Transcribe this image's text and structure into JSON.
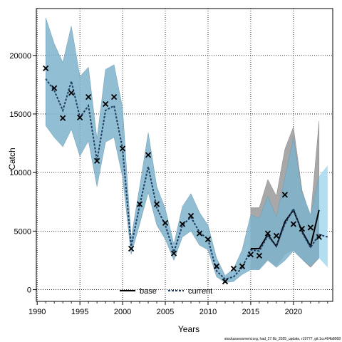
{
  "chart_data": {
    "type": "line",
    "title": "",
    "xlabel": "Years",
    "ylabel": "Catch",
    "xlim": [
      1989.9,
      2024.6
    ],
    "ylim": [
      -1000,
      24000
    ],
    "x_ticks": [
      "1990",
      "1995",
      "2000",
      "2005",
      "2010",
      "2015",
      "2020"
    ],
    "y_ticks": [
      "0",
      "5000",
      "10000",
      "15000",
      "20000"
    ],
    "grid": true,
    "legend_position": "bottom",
    "legend": [
      "base",
      "current"
    ],
    "years": [
      1991,
      1992,
      1993,
      1994,
      1995,
      1996,
      1997,
      1998,
      1999,
      2000,
      2001,
      2002,
      2003,
      2004,
      2005,
      2006,
      2007,
      2008,
      2009,
      2010,
      2011,
      2012,
      2013,
      2014,
      2015,
      2016,
      2017,
      2018,
      2019,
      2020,
      2021,
      2022,
      2023,
      2024
    ],
    "observed": {
      "name": "observed",
      "x": [
        1991,
        1992,
        1993,
        1994,
        1995,
        1996,
        1997,
        1998,
        1999,
        2000,
        2001,
        2002,
        2003,
        2004,
        2005,
        2006,
        2007,
        2008,
        2009,
        2010,
        2011,
        2012,
        2013,
        2014,
        2015,
        2016,
        2017,
        2018,
        2019,
        2020,
        2021,
        2022,
        2023
      ],
      "y": [
        18900,
        17200,
        14650,
        16800,
        14700,
        16450,
        11000,
        15850,
        16450,
        12050,
        3500,
        7300,
        11500,
        7300,
        5700,
        3100,
        5600,
        6300,
        4800,
        4300,
        2000,
        700,
        1800,
        2000,
        3000,
        2900,
        4800,
        4600,
        8100,
        5600,
        5200,
        5300,
        4500
      ]
    },
    "series": [
      {
        "name": "base",
        "color": "#000000",
        "style": "solid",
        "x": [
          2015,
          2016,
          2017,
          2018,
          2019,
          2020,
          2021,
          2022,
          2023
        ],
        "values": [
          3500,
          3500,
          4700,
          3700,
          5800,
          6800,
          5000,
          3700,
          6800
        ],
        "lower": [
          1800,
          1800,
          2600,
          2000,
          3000,
          3400,
          2600,
          1900,
          2700
        ],
        "upper": [
          7000,
          7000,
          9400,
          8000,
          12000,
          13900,
          8500,
          6200,
          14400
        ]
      },
      {
        "name": "current",
        "color": "#1f3d63",
        "style": "dashed",
        "x": [
          1991,
          1992,
          1993,
          1994,
          1995,
          1996,
          1997,
          1998,
          1999,
          2000,
          2001,
          2002,
          2003,
          2004,
          2005,
          2006,
          2007,
          2008,
          2009,
          2010,
          2011,
          2012,
          2013,
          2014,
          2015,
          2016,
          2017,
          2018,
          2019,
          2020,
          2021,
          2022,
          2023,
          2024
        ],
        "values": [
          18000,
          17000,
          15300,
          17800,
          14700,
          15700,
          11000,
          15300,
          15700,
          12000,
          3700,
          7200,
          10500,
          7000,
          5500,
          3200,
          5500,
          6200,
          4900,
          4300,
          1600,
          900,
          1100,
          1900,
          3400,
          3300,
          4600,
          3700,
          5600,
          6900,
          4900,
          3600,
          4700,
          4500
        ],
        "lower": [
          14000,
          13000,
          12200,
          13700,
          11400,
          12700,
          8800,
          12600,
          13000,
          9600,
          3000,
          5600,
          8300,
          5500,
          4300,
          2500,
          4500,
          5000,
          3800,
          3400,
          1100,
          600,
          700,
          1300,
          1700,
          1700,
          2500,
          1900,
          2500,
          3300,
          2600,
          2000,
          2700,
          1900
        ],
        "upper": [
          23200,
          21000,
          19400,
          22500,
          18200,
          19000,
          12900,
          18800,
          19200,
          15500,
          4400,
          8800,
          13400,
          8800,
          6900,
          3900,
          7100,
          8200,
          6600,
          5500,
          2700,
          1200,
          1800,
          3400,
          6400,
          6100,
          8000,
          6200,
          9600,
          13000,
          8300,
          6400,
          9700,
          10600
        ]
      }
    ]
  },
  "axes": {
    "x_label": "Years",
    "y_label": "Catch"
  },
  "legend": {
    "base_label": "base",
    "current_label": "current"
  },
  "footnote": "stockassessment.org, had_27.6b_2025_update, r19777, git:1cc464b8068",
  "colors": {
    "base_band": "#a8a8a8",
    "current_band": "#7fb3cc",
    "forecast_band": "#a8daf0",
    "base_line": "#000000",
    "current_line": "#1f3d63"
  }
}
